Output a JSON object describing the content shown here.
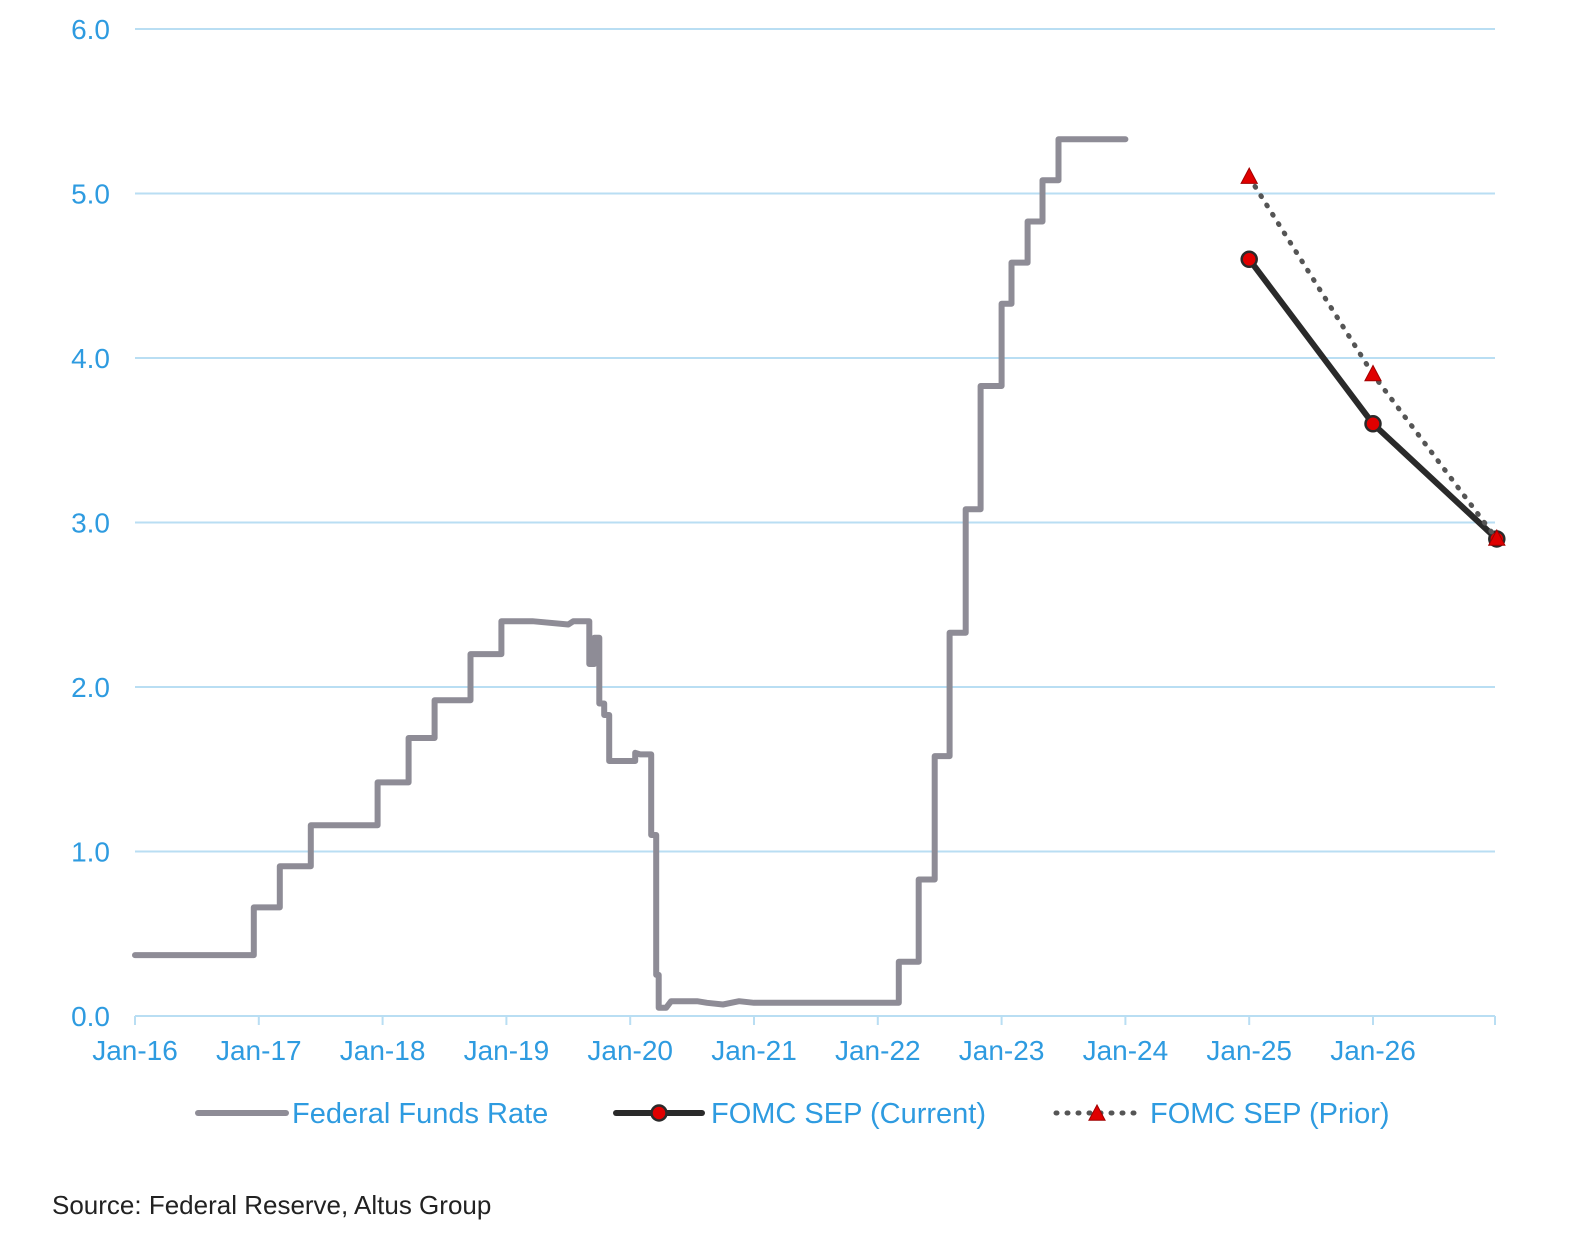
{
  "chart_data": {
    "type": "line",
    "title": "",
    "xlabel": "",
    "ylabel": "",
    "ylim": [
      0,
      6
    ],
    "yticks": [
      "0.0",
      "1.0",
      "2.0",
      "3.0",
      "4.0",
      "5.0",
      "6.0"
    ],
    "xticks": [
      "Jan-16",
      "Jan-17",
      "Jan-18",
      "Jan-19",
      "Jan-20",
      "Jan-21",
      "Jan-22",
      "Jan-23",
      "Jan-24",
      "Jan-25",
      "Jan-26"
    ],
    "x_unit": "years since Jan-16",
    "xlim": [
      0,
      11
    ],
    "grid": "horizontal",
    "legend_position": "bottom",
    "series": [
      {
        "name": "Federal Funds Rate",
        "color": "#8e8c96",
        "style": "solid",
        "x": [
          0.0,
          0.96,
          0.96,
          1.17,
          1.17,
          1.42,
          1.42,
          1.46,
          1.46,
          1.96,
          1.96,
          2.21,
          2.21,
          2.42,
          2.42,
          2.71,
          2.71,
          2.96,
          2.96,
          3.21,
          3.21,
          3.5,
          3.54,
          3.58,
          3.67,
          3.67,
          3.71,
          3.71,
          3.75,
          3.75,
          3.79,
          3.79,
          3.83,
          3.83,
          4.04,
          4.04,
          4.08,
          4.17,
          4.17,
          4.21,
          4.21,
          4.23,
          4.23,
          4.29,
          4.33,
          4.42,
          4.54,
          4.62,
          4.75,
          4.88,
          5.0,
          5.25,
          5.42,
          5.58,
          5.67,
          5.75,
          5.88,
          5.96,
          6.0,
          6.17,
          6.17,
          6.33,
          6.33,
          6.46,
          6.46,
          6.58,
          6.58,
          6.71,
          6.71,
          6.83,
          6.83,
          7.0,
          7.0,
          7.08,
          7.08,
          7.21,
          7.21,
          7.33,
          7.33,
          7.46,
          7.46,
          7.54,
          7.54,
          8.0
        ],
        "values": [
          0.37,
          0.37,
          0.66,
          0.66,
          0.91,
          0.91,
          1.16,
          1.16,
          1.16,
          1.16,
          1.42,
          1.42,
          1.69,
          1.69,
          1.92,
          1.92,
          2.2,
          2.2,
          2.4,
          2.4,
          2.4,
          2.38,
          2.4,
          2.4,
          2.4,
          2.14,
          2.14,
          2.3,
          2.3,
          1.9,
          1.9,
          1.83,
          1.83,
          1.55,
          1.55,
          1.6,
          1.59,
          1.59,
          1.1,
          1.1,
          0.25,
          0.25,
          0.05,
          0.05,
          0.09,
          0.09,
          0.09,
          0.08,
          0.07,
          0.09,
          0.08,
          0.08,
          0.08,
          0.08,
          0.08,
          0.08,
          0.08,
          0.08,
          0.08,
          0.08,
          0.33,
          0.33,
          0.83,
          0.83,
          1.58,
          1.58,
          2.33,
          2.33,
          3.08,
          3.08,
          3.83,
          3.83,
          4.33,
          4.33,
          4.58,
          4.58,
          4.83,
          4.83,
          5.08,
          5.08,
          5.33,
          5.33,
          5.33,
          5.33
        ]
      },
      {
        "name": "FOMC SEP (Current)",
        "color": "#2a2a2a",
        "marker_color": "#e00000",
        "style": "solid-circle",
        "x": [
          9,
          10,
          11
        ],
        "values": [
          4.6,
          3.6,
          2.9
        ]
      },
      {
        "name": "FOMC SEP (Prior)",
        "color": "#555555",
        "marker_color": "#e00000",
        "style": "dotted-triangle",
        "x": [
          9,
          10,
          11
        ],
        "values": [
          5.1,
          3.9,
          2.9
        ]
      }
    ]
  },
  "source_text": "Source: Federal Reserve, Altus Group"
}
